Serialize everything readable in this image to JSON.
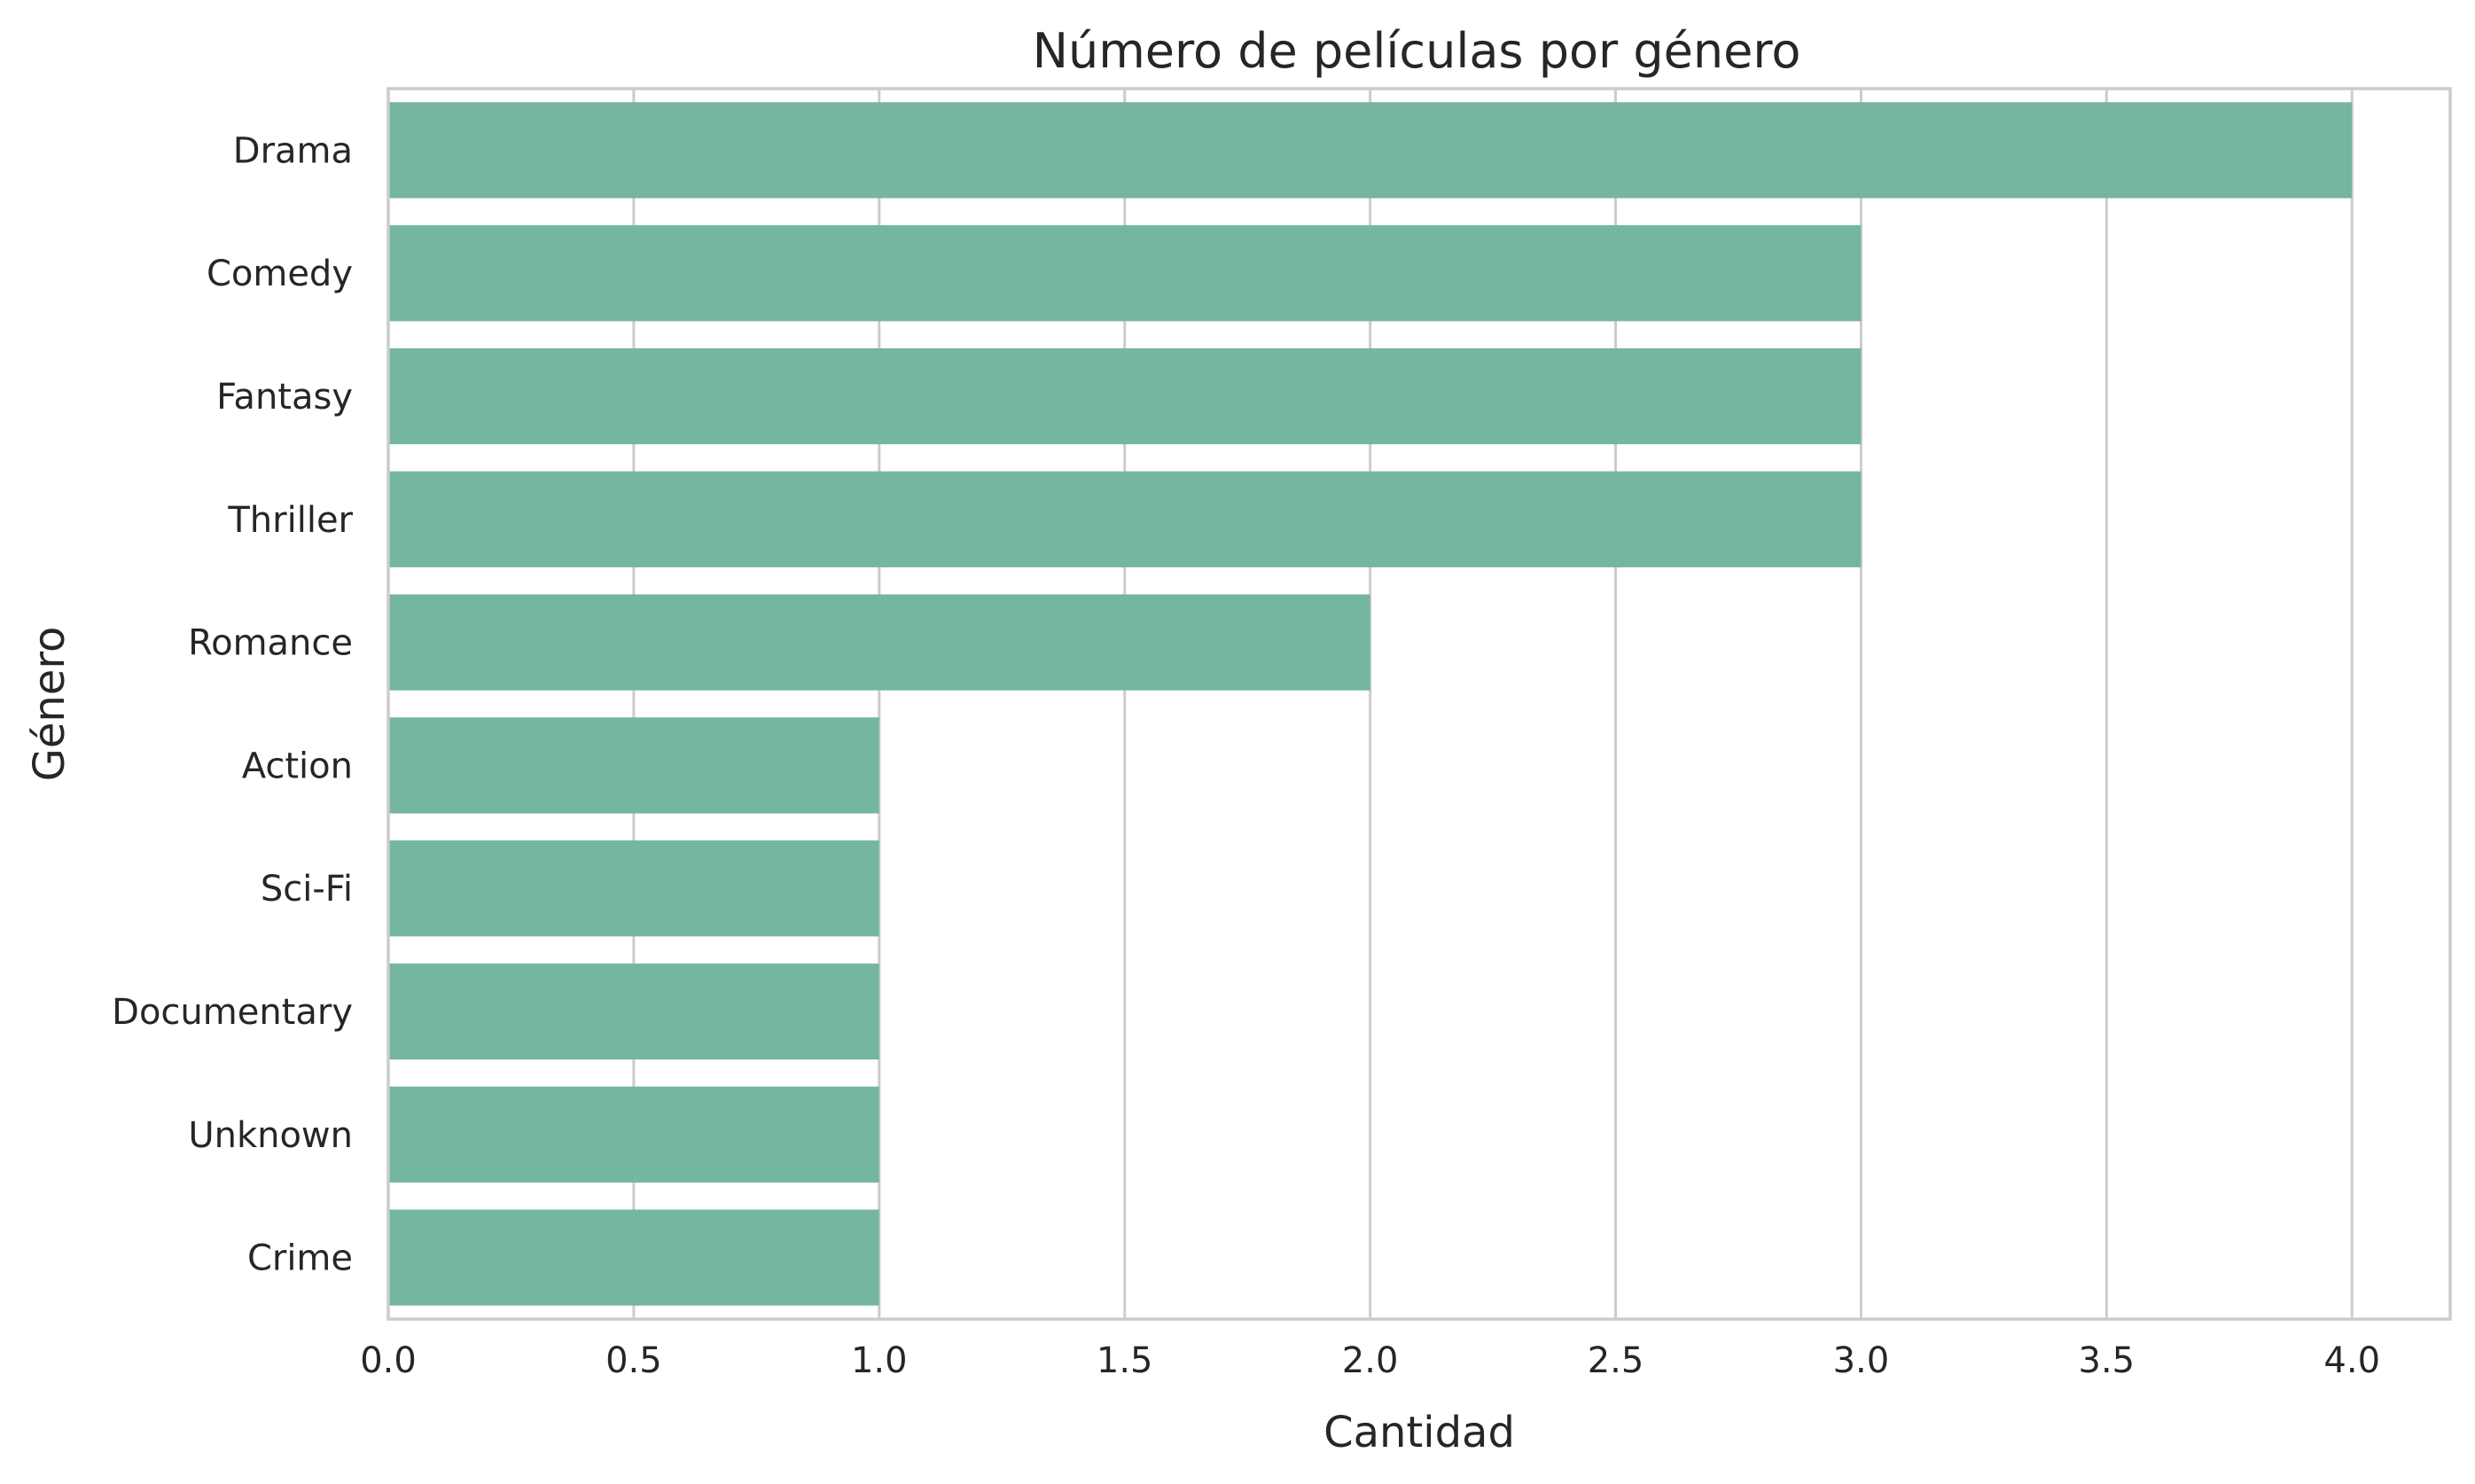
{
  "chart_data": {
    "type": "bar",
    "orientation": "horizontal",
    "title": "Número de películas por género",
    "xlabel": "Cantidad",
    "ylabel": "Género",
    "categories": [
      "Drama",
      "Comedy",
      "Fantasy",
      "Thriller",
      "Romance",
      "Action",
      "Sci-Fi",
      "Documentary",
      "Unknown",
      "Crime"
    ],
    "values": [
      4,
      3,
      3,
      3,
      2,
      1,
      1,
      1,
      1,
      1
    ],
    "xlim": [
      0,
      4.2
    ],
    "xticks": [
      "0.0",
      "0.5",
      "1.0",
      "1.5",
      "2.0",
      "2.5",
      "3.0",
      "3.5",
      "4.0"
    ],
    "grid": true,
    "bar_color": "#74b6a0",
    "grid_color": "#cccccc"
  }
}
